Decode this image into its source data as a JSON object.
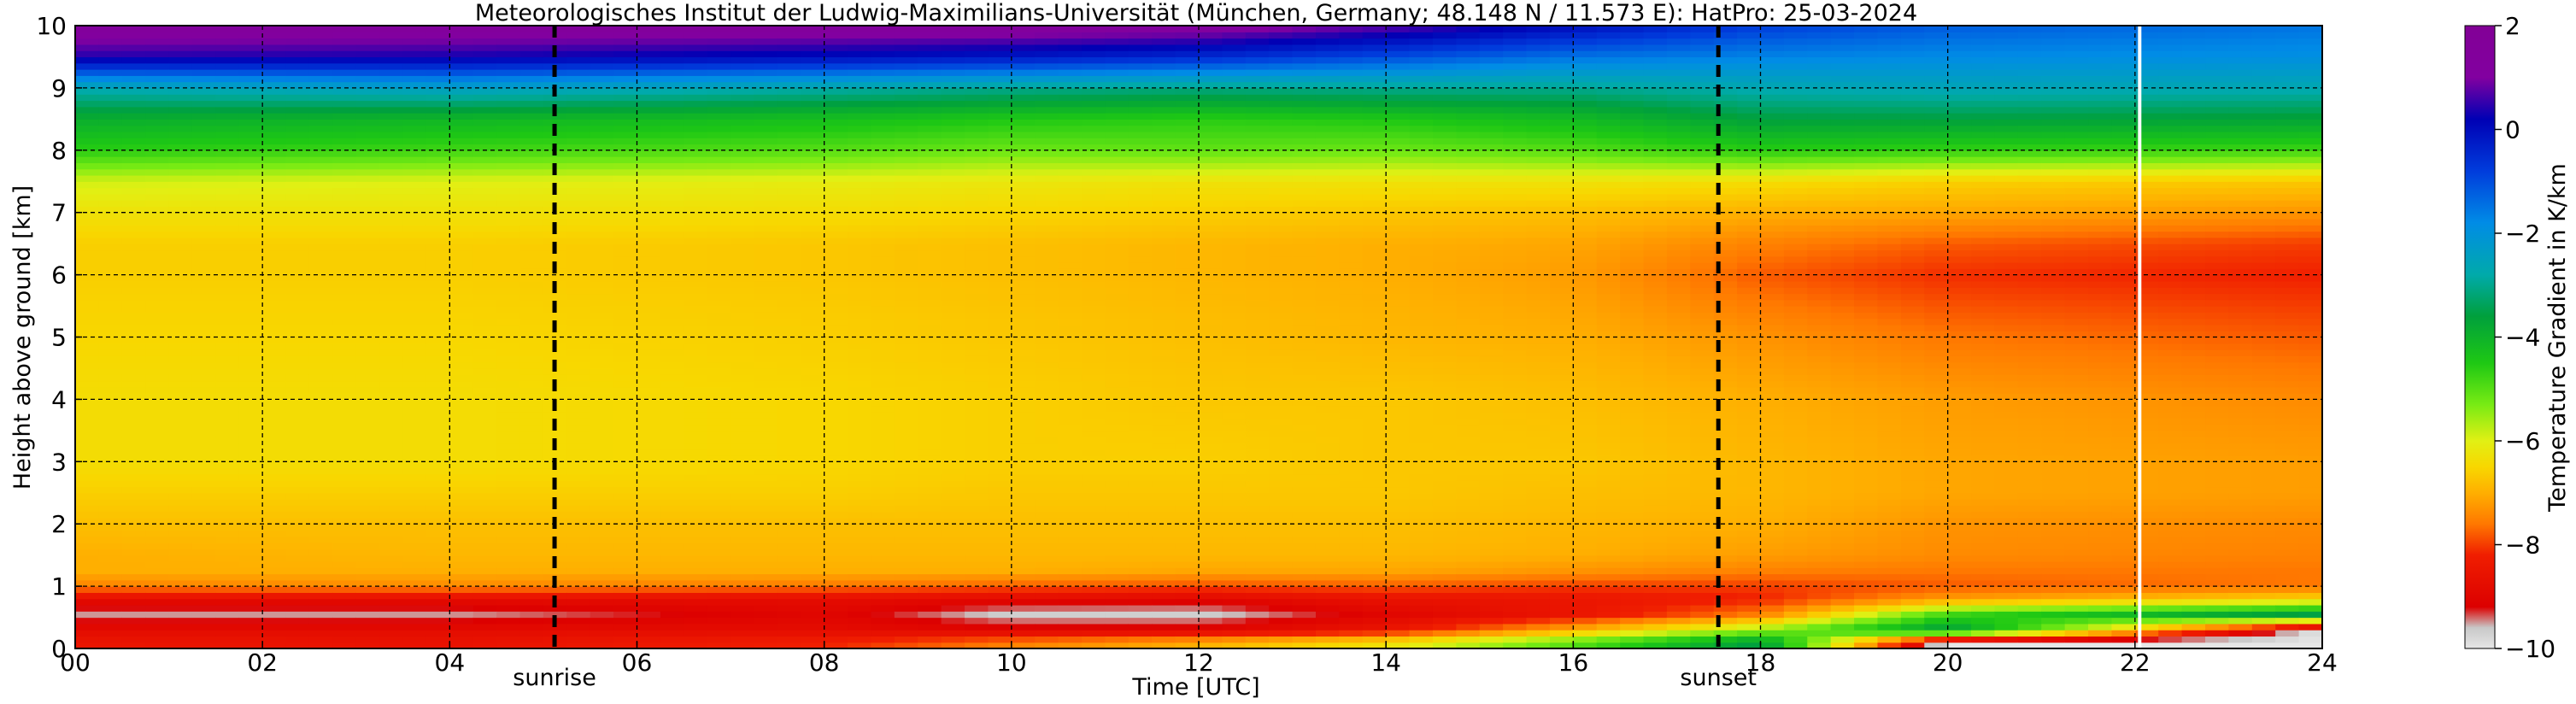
{
  "chart_data": {
    "type": "heatmap",
    "title": "Meteorologisches Institut der Ludwig-Maximilians-Universität (München, Germany; 48.148 N / 11.573 E):    HatPro: 25-03-2024",
    "xlabel": "Time [UTC]",
    "ylabel": "Height above ground [km]",
    "xlim": [
      0,
      24
    ],
    "ylim": [
      0,
      10
    ],
    "x_ticks": [
      0,
      2,
      4,
      6,
      8,
      10,
      12,
      14,
      16,
      18,
      20,
      22,
      24
    ],
    "x_tick_labels": [
      "00",
      "02",
      "04",
      "06",
      "08",
      "10",
      "12",
      "14",
      "16",
      "18",
      "20",
      "22",
      "24"
    ],
    "y_ticks": [
      0,
      1,
      2,
      3,
      4,
      5,
      6,
      7,
      8,
      9,
      10
    ],
    "y_tick_labels": [
      "0",
      "1",
      "2",
      "3",
      "4",
      "5",
      "6",
      "7",
      "8",
      "9",
      "10"
    ],
    "grid": true,
    "colorbar": {
      "label": "Temperature Gradient in K/km",
      "range": [
        -10,
        2
      ],
      "ticks": [
        2,
        0,
        -2,
        -4,
        -6,
        -8,
        -10
      ],
      "tick_labels": [
        "2",
        "0",
        "−2",
        "−4",
        "−6",
        "−8",
        "−10"
      ]
    },
    "annotations": [
      {
        "label": "sunrise",
        "time": 5.12,
        "style": "dashed"
      },
      {
        "label": "sunset",
        "time": 17.55,
        "style": "dashed"
      }
    ],
    "data_gap_time": 22.05,
    "profile_heights_km": [
      0.1,
      0.3,
      0.55,
      0.8,
      1.0,
      1.25,
      1.5,
      2.0,
      2.5,
      3.0,
      4.0,
      5.0,
      6.0,
      6.5,
      7.0,
      7.5,
      8.0,
      8.5,
      9.0,
      9.5,
      10.0
    ],
    "profiles": [
      {
        "time_utc": 0,
        "gradient_K_per_km": [
          -8.5,
          -8.8,
          -9.5,
          -8.8,
          -7.5,
          -7.0,
          -7.0,
          -6.8,
          -6.6,
          -6.4,
          -6.4,
          -6.5,
          -6.6,
          -6.6,
          -6.3,
          -5.9,
          -4.6,
          -3.9,
          -2.7,
          0.4,
          1.5
        ]
      },
      {
        "time_utc": 4,
        "gradient_K_per_km": [
          -8.6,
          -8.8,
          -9.5,
          -8.8,
          -7.4,
          -7.0,
          -6.9,
          -6.8,
          -6.6,
          -6.4,
          -6.4,
          -6.5,
          -6.6,
          -6.6,
          -6.3,
          -6.0,
          -4.8,
          -4.1,
          -2.4,
          0.3,
          1.5
        ]
      },
      {
        "time_utc": 8,
        "gradient_K_per_km": [
          -8.2,
          -8.8,
          -9.0,
          -8.8,
          -7.6,
          -7.0,
          -6.9,
          -6.8,
          -6.6,
          -6.5,
          -6.5,
          -6.6,
          -6.7,
          -6.7,
          -6.4,
          -6.1,
          -5.0,
          -4.3,
          -2.8,
          0.0,
          1.5
        ]
      },
      {
        "time_utc": 10,
        "gradient_K_per_km": [
          -7.5,
          -9.0,
          -9.7,
          -8.9,
          -7.8,
          -7.0,
          -6.9,
          -6.8,
          -6.7,
          -6.6,
          -6.6,
          -6.7,
          -6.8,
          -6.8,
          -6.5,
          -6.2,
          -5.2,
          -4.5,
          -3.0,
          -0.2,
          1.5
        ]
      },
      {
        "time_utc": 12,
        "gradient_K_per_km": [
          -7.0,
          -9.0,
          -9.7,
          -9.0,
          -7.9,
          -7.1,
          -6.9,
          -6.8,
          -6.7,
          -6.6,
          -6.7,
          -6.8,
          -6.9,
          -6.9,
          -6.6,
          -6.3,
          -5.1,
          -4.6,
          -3.1,
          -0.5,
          1.4
        ]
      },
      {
        "time_utc": 14,
        "gradient_K_per_km": [
          -6.3,
          -8.5,
          -9.0,
          -8.6,
          -7.8,
          -7.1,
          -6.9,
          -6.8,
          -6.7,
          -6.7,
          -6.7,
          -6.9,
          -7.0,
          -7.0,
          -6.7,
          -6.3,
          -5.2,
          -4.5,
          -3.0,
          -1.0,
          0.8
        ]
      },
      {
        "time_utc": 16,
        "gradient_K_per_km": [
          -5.0,
          -7.0,
          -8.5,
          -8.5,
          -8.0,
          -7.3,
          -7.0,
          -6.9,
          -6.8,
          -6.7,
          -6.8,
          -7.0,
          -7.2,
          -7.1,
          -6.8,
          -6.3,
          -5.0,
          -4.2,
          -3.0,
          -1.5,
          0.0
        ]
      },
      {
        "time_utc": 18,
        "gradient_K_per_km": [
          -3.5,
          -5.5,
          -7.5,
          -8.2,
          -8.0,
          -7.5,
          -7.2,
          -7.0,
          -6.9,
          -6.9,
          -7.0,
          -7.3,
          -7.8,
          -7.5,
          -7.0,
          -6.4,
          -4.6,
          -3.6,
          -2.7,
          -1.7,
          -0.8
        ]
      },
      {
        "time_utc": 20,
        "gradient_K_per_km": [
          -10.0,
          -3.5,
          -4.8,
          -7.2,
          -7.8,
          -7.6,
          -7.4,
          -7.3,
          -7.1,
          -7.1,
          -7.2,
          -7.6,
          -8.1,
          -7.8,
          -7.1,
          -6.6,
          -4.7,
          -3.6,
          -2.6,
          -1.8,
          -1.2
        ]
      },
      {
        "time_utc": 24,
        "gradient_K_per_km": [
          -10.0,
          -10.0,
          -3.5,
          -6.5,
          -7.6,
          -7.6,
          -7.5,
          -7.4,
          -7.2,
          -7.2,
          -7.4,
          -7.8,
          -8.2,
          -8.0,
          -7.3,
          -6.7,
          -4.8,
          -3.7,
          -2.7,
          -1.9,
          -1.5
        ]
      }
    ]
  }
}
